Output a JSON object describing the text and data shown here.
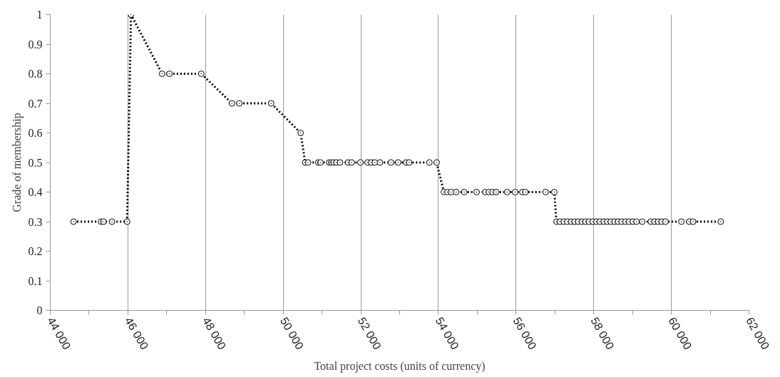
{
  "chart_data": {
    "type": "line",
    "xlabel": "Total project costs (units of currency)",
    "ylabel": "Grade of membership",
    "series": [
      {
        "color": "#000000",
        "x": [
          44600,
          45310,
          45370,
          45590,
          45980,
          46080,
          46880,
          47070,
          47890,
          48680,
          48870,
          49690,
          50450,
          50567,
          50642,
          50904,
          50960,
          51185,
          51241,
          51297,
          51372,
          51465,
          51671,
          51765,
          51989,
          52176,
          52270,
          52363,
          52494,
          52775,
          52962,
          53168,
          53243,
          53767,
          53954,
          54141,
          54234,
          54328,
          54459,
          54665,
          54983,
          55208,
          55302,
          55395,
          55489,
          55769,
          55975,
          56162,
          56237,
          56760,
          56985,
          57040,
          57130,
          57230,
          57320,
          57420,
          57510,
          57600,
          57700,
          57790,
          57880,
          57980,
          58070,
          58160,
          58260,
          58350,
          58440,
          58540,
          58630,
          58720,
          58820,
          58910,
          59010,
          59100,
          59250,
          59470,
          59570,
          59660,
          59750,
          59850,
          60260,
          60460,
          60560,
          61270
        ],
        "values": [
          0.3,
          0.3,
          0.3,
          0.3,
          0.3,
          1,
          0.8,
          0.8,
          0.8,
          0.7,
          0.7,
          0.7,
          0.6,
          0.5,
          0.5,
          0.5,
          0.5,
          0.5,
          0.5,
          0.5,
          0.5,
          0.5,
          0.5,
          0.5,
          0.5,
          0.5,
          0.5,
          0.5,
          0.5,
          0.5,
          0.5,
          0.5,
          0.5,
          0.5,
          0.5,
          0.4,
          0.4,
          0.4,
          0.4,
          0.4,
          0.4,
          0.4,
          0.4,
          0.4,
          0.4,
          0.4,
          0.4,
          0.4,
          0.4,
          0.4,
          0.4,
          0.3,
          0.3,
          0.3,
          0.3,
          0.3,
          0.3,
          0.3,
          0.3,
          0.3,
          0.3,
          0.3,
          0.3,
          0.3,
          0.3,
          0.3,
          0.3,
          0.3,
          0.3,
          0.3,
          0.3,
          0.3,
          0.3,
          0.3,
          0.3,
          0.3,
          0.3,
          0.3,
          0.3,
          0.3,
          0.3,
          0.3,
          0.3,
          0.3
        ]
      }
    ],
    "xlim": [
      44000,
      62000
    ],
    "xticks": [
      {
        "value": 44000,
        "label": "44 000"
      },
      {
        "value": 45000,
        "label": null
      },
      {
        "value": 46000,
        "label": "46 000"
      },
      {
        "value": 47000,
        "label": null
      },
      {
        "value": 48000,
        "label": "48 000"
      },
      {
        "value": 49000,
        "label": null
      },
      {
        "value": 50000,
        "label": "50 000"
      },
      {
        "value": 51000,
        "label": null
      },
      {
        "value": 52000,
        "label": "52 000"
      },
      {
        "value": 53000,
        "label": null
      },
      {
        "value": 54000,
        "label": "54 000"
      },
      {
        "value": 55000,
        "label": null
      },
      {
        "value": 56000,
        "label": "56 000"
      },
      {
        "value": 57000,
        "label": null
      },
      {
        "value": 58000,
        "label": "58 000"
      },
      {
        "value": 59000,
        "label": null
      },
      {
        "value": 60000,
        "label": "60 000"
      },
      {
        "value": 61000,
        "label": null
      },
      {
        "value": 62000,
        "label": "62 000"
      }
    ],
    "ylim": [
      0,
      1
    ],
    "yticks": [
      0,
      0.1,
      0.2,
      0.3,
      0.4,
      0.5,
      0.6,
      0.7,
      0.8,
      0.9,
      1
    ],
    "grid": "x",
    "marker": "circle",
    "line_style": "dotted"
  }
}
